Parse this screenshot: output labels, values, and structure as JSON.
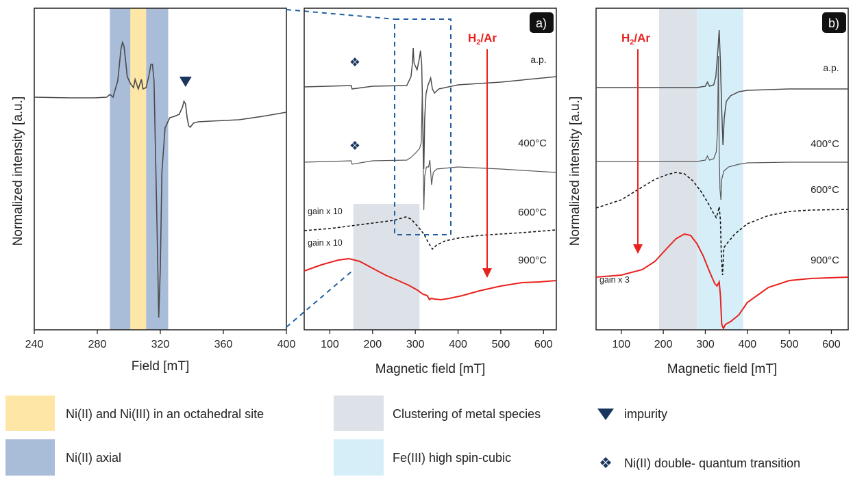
{
  "chart_data": [
    {
      "type": "line",
      "panel": "",
      "xlabel": "Field [mT]",
      "ylabel": "Normalized intensity [a.u.]",
      "xlim": [
        240,
        400
      ],
      "xticks": [
        240,
        280,
        320,
        360,
        400
      ],
      "series": [
        {
          "points": [
            [
              240,
              130
            ],
            [
              262,
              131
            ],
            [
              278,
              131
            ],
            [
              286,
              130
            ],
            [
              288,
              126
            ],
            [
              290,
              130
            ],
            [
              293,
              106
            ],
            [
              295,
              60
            ],
            [
              296,
              50
            ],
            [
              297,
              56
            ],
            [
              299,
              100
            ],
            [
              301,
              110
            ],
            [
              303,
              116
            ],
            [
              304,
              104
            ],
            [
              306,
              118
            ],
            [
              308,
              104
            ],
            [
              309,
              118
            ],
            [
              311,
              116
            ],
            [
              313,
              96
            ],
            [
              314,
              82
            ],
            [
              315,
              82
            ],
            [
              316,
              106
            ],
            [
              317,
              218
            ],
            [
              318,
              330
            ],
            [
              319,
              452
            ],
            [
              320,
              380
            ],
            [
              321,
              240
            ],
            [
              323,
              175
            ],
            [
              326,
              160
            ],
            [
              329,
              158
            ],
            [
              332,
              155
            ],
            [
              334,
              145
            ],
            [
              335,
              136
            ],
            [
              336,
              140
            ],
            [
              337,
              160
            ],
            [
              338,
              172
            ],
            [
              339,
              174
            ],
            [
              341,
              168
            ],
            [
              344,
              166
            ],
            [
              352,
              165
            ],
            [
              370,
              163
            ],
            [
              385,
              158
            ],
            [
              400,
              152
            ]
          ]
        }
      ],
      "bands": [
        {
          "legend": "Ni(II) axial",
          "x": [
            288,
            301
          ]
        },
        {
          "legend": "Ni(II) and Ni(III) in an octahedral site",
          "x": [
            301,
            311
          ]
        },
        {
          "legend": "Ni(II) axial",
          "x": [
            311,
            325
          ]
        }
      ],
      "markers": [
        {
          "legend": "impurity",
          "x": 336
        }
      ]
    },
    {
      "type": "line",
      "panel": "a)",
      "xlabel": "Magnetic field [mT]",
      "xlim": [
        40,
        630
      ],
      "xticks": [
        100,
        200,
        300,
        400,
        500,
        600
      ],
      "arrow_label": "H2/Ar",
      "series": [
        {
          "name": "a.p.",
          "color": "#4a4a4a",
          "points": [
            [
              40,
              115
            ],
            [
              150,
              113
            ],
            [
              152,
              118
            ],
            [
              200,
              114
            ],
            [
              280,
              113
            ],
            [
              290,
              100
            ],
            [
              293,
              82
            ],
            [
              295,
              58
            ],
            [
              297,
              80
            ],
            [
              304,
              90
            ],
            [
              310,
              72
            ],
            [
              312,
              62
            ],
            [
              315,
              82
            ],
            [
              318,
              180
            ],
            [
              320,
              235
            ],
            [
              322,
              160
            ],
            [
              325,
              125
            ],
            [
              330,
              112
            ],
            [
              336,
              102
            ],
            [
              340,
              118
            ],
            [
              345,
              124
            ],
            [
              355,
              118
            ],
            [
              400,
              112
            ],
            [
              500,
              108
            ],
            [
              630,
              100
            ]
          ]
        },
        {
          "name": "400°C",
          "color": "#555555",
          "points": [
            [
              40,
              225
            ],
            [
              150,
              223
            ],
            [
              152,
              228
            ],
            [
              200,
              223
            ],
            [
              280,
              222
            ],
            [
              290,
              218
            ],
            [
              300,
              212
            ],
            [
              310,
              205
            ],
            [
              314,
              196
            ],
            [
              316,
              130
            ],
            [
              318,
              200
            ],
            [
              320,
              295
            ],
            [
              322,
              245
            ],
            [
              326,
              232
            ],
            [
              331,
              232
            ],
            [
              334,
              222
            ],
            [
              338,
              258
            ],
            [
              342,
              240
            ],
            [
              350,
              235
            ],
            [
              400,
              232
            ],
            [
              500,
              235
            ],
            [
              630,
              240
            ]
          ]
        },
        {
          "name": "600°C",
          "color": "#111111",
          "dashed": true,
          "points": [
            [
              40,
              325
            ],
            [
              100,
              322
            ],
            [
              150,
              318
            ],
            [
              200,
              314
            ],
            [
              250,
              310
            ],
            [
              278,
              305
            ],
            [
              290,
              308
            ],
            [
              300,
              315
            ],
            [
              310,
              322
            ],
            [
              320,
              330
            ],
            [
              330,
              342
            ],
            [
              340,
              352
            ],
            [
              350,
              346
            ],
            [
              370,
              340
            ],
            [
              400,
              336
            ],
            [
              450,
              332
            ],
            [
              500,
              330
            ],
            [
              550,
              328
            ],
            [
              630,
              324
            ]
          ]
        },
        {
          "name": "900°C",
          "color": "#e8211d",
          "points": [
            [
              40,
              384
            ],
            [
              80,
              375
            ],
            [
              120,
              368
            ],
            [
              145,
              366
            ],
            [
              170,
              370
            ],
            [
              200,
              380
            ],
            [
              230,
              390
            ],
            [
              260,
              398
            ],
            [
              285,
              405
            ],
            [
              305,
              412
            ],
            [
              318,
              418
            ],
            [
              328,
              420
            ],
            [
              333,
              426
            ],
            [
              337,
              424
            ],
            [
              345,
              425
            ],
            [
              360,
              426
            ],
            [
              380,
              424
            ],
            [
              410,
              420
            ],
            [
              450,
              413
            ],
            [
              500,
              406
            ],
            [
              550,
              401
            ],
            [
              590,
              400
            ],
            [
              630,
              398
            ]
          ]
        }
      ],
      "bands": [
        {
          "legend": "Clustering of metal species",
          "x": [
            155,
            310
          ]
        }
      ],
      "markers": [
        {
          "legend": "Ni(II) double- quantum transition",
          "x": 150
        }
      ],
      "annotations": [
        "gain x 10",
        "gain x 10"
      ]
    },
    {
      "type": "line",
      "panel": "b)",
      "xlabel": "Magnetic field [mT]",
      "ylabel": "Normalized intensity [a.u.]",
      "xlim": [
        40,
        640
      ],
      "xticks": [
        100,
        200,
        300,
        400,
        500,
        600
      ],
      "arrow_label": "H2/Ar",
      "series": [
        {
          "name": "a.p.",
          "color": "#4a4a4a",
          "points": [
            [
              40,
              116
            ],
            [
              200,
              116
            ],
            [
              280,
              116
            ],
            [
              300,
              114
            ],
            [
              305,
              108
            ],
            [
              310,
              114
            ],
            [
              320,
              112
            ],
            [
              325,
              100
            ],
            [
              330,
              60
            ],
            [
              333,
              32
            ],
            [
              336,
              80
            ],
            [
              339,
              150
            ],
            [
              342,
              200
            ],
            [
              345,
              160
            ],
            [
              350,
              136
            ],
            [
              360,
              128
            ],
            [
              380,
              122
            ],
            [
              400,
              120
            ],
            [
              500,
              118
            ],
            [
              640,
              118
            ]
          ]
        },
        {
          "name": "400°C",
          "color": "#555555",
          "points": [
            [
              40,
              224
            ],
            [
              200,
              224
            ],
            [
              280,
              224
            ],
            [
              300,
              222
            ],
            [
              305,
              216
            ],
            [
              310,
              222
            ],
            [
              320,
              220
            ],
            [
              326,
              210
            ],
            [
              329,
              180
            ],
            [
              331,
              70
            ],
            [
              333,
              210
            ],
            [
              335,
              265
            ],
            [
              337,
              280
            ],
            [
              339,
              250
            ],
            [
              344,
              238
            ],
            [
              355,
              232
            ],
            [
              380,
              228
            ],
            [
              400,
              226
            ],
            [
              500,
              225
            ],
            [
              640,
              225
            ]
          ]
        },
        {
          "name": "600°C",
          "color": "#111111",
          "dashed": true,
          "points": [
            [
              40,
              292
            ],
            [
              100,
              280
            ],
            [
              140,
              265
            ],
            [
              180,
              250
            ],
            [
              210,
              243
            ],
            [
              230,
              240
            ],
            [
              250,
              242
            ],
            [
              270,
              252
            ],
            [
              290,
              268
            ],
            [
              305,
              283
            ],
            [
              318,
              298
            ],
            [
              326,
              306
            ],
            [
              330,
              298
            ],
            [
              333,
              290
            ],
            [
              336,
              310
            ],
            [
              338,
              360
            ],
            [
              341,
              390
            ],
            [
              344,
              350
            ],
            [
              350,
              345
            ],
            [
              370,
              330
            ],
            [
              400,
              315
            ],
            [
              450,
              303
            ],
            [
              500,
              297
            ],
            [
              550,
              295
            ],
            [
              640,
              294
            ]
          ]
        },
        {
          "name": "900°C",
          "color": "#e8211d",
          "points": [
            [
              40,
              393
            ],
            [
              100,
              390
            ],
            [
              150,
              382
            ],
            [
              180,
              370
            ],
            [
              210,
              350
            ],
            [
              230,
              337
            ],
            [
              250,
              330
            ],
            [
              265,
              332
            ],
            [
              280,
              344
            ],
            [
              295,
              362
            ],
            [
              310,
              385
            ],
            [
              322,
              402
            ],
            [
              328,
              406
            ],
            [
              333,
              400
            ],
            [
              336,
              420
            ],
            [
              339,
              462
            ],
            [
              343,
              468
            ],
            [
              348,
              462
            ],
            [
              360,
              458
            ],
            [
              380,
              448
            ],
            [
              400,
              430
            ],
            [
              450,
              408
            ],
            [
              500,
              398
            ],
            [
              550,
              395
            ],
            [
              640,
              393
            ]
          ]
        }
      ],
      "bands": [
        {
          "legend": "Clustering of metal species",
          "x": [
            190,
            280
          ]
        },
        {
          "legend": "Fe(III) high spin-cubic",
          "x": [
            280,
            390
          ]
        }
      ],
      "annotations": [
        "gain x 3"
      ]
    }
  ],
  "legend": [
    {
      "label": "Ni(II) and Ni(III) in an octahedral site",
      "color": "#fde6a6",
      "kind": "box"
    },
    {
      "label": "Ni(II) axial",
      "color": "#a9bcd8",
      "kind": "box"
    },
    {
      "label": "Clustering of metal species",
      "color": "#dde2e8",
      "kind": "box"
    },
    {
      "label": "Fe(III) high spin-cubic",
      "color": "#d6eef8",
      "kind": "box"
    },
    {
      "label": "impurity",
      "color": "#1b365d",
      "kind": "triangle"
    },
    {
      "label": "Ni(II) double- quantum transition",
      "color": "#1b365d",
      "kind": "diamond4"
    }
  ],
  "labels": {
    "panel_a": "a)",
    "panel_b": "b)",
    "arrow_main": "H",
    "arrow_sub": "2",
    "arrow_tail": "/Ar",
    "ap": "a.p.",
    "t400": "400°C",
    "t600": "600°C",
    "t900": "900°C",
    "gain10": "gain x 10",
    "gain3": "gain x 3"
  },
  "colors": {
    "red": "#e8211d",
    "navy": "#1b365d",
    "zoom_box": "#1f5fa0"
  }
}
